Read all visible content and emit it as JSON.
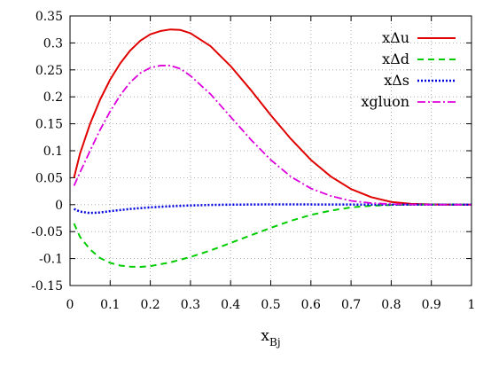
{
  "chart_data": {
    "type": "line",
    "xlabel": "x",
    "xlabel_sub": "Bj",
    "ylabel": "",
    "xlim": [
      0,
      1
    ],
    "ylim": [
      -0.15,
      0.35
    ],
    "xticks": [
      0,
      0.1,
      0.2,
      0.3,
      0.4,
      0.5,
      0.6,
      0.7,
      0.8,
      0.9,
      1
    ],
    "xtick_labels": [
      "0",
      "0.1",
      "0.2",
      "0.3",
      "0.4",
      "0.5",
      "0.6",
      "0.7",
      "0.8",
      "0.9",
      "1"
    ],
    "yticks": [
      -0.15,
      -0.1,
      -0.05,
      0,
      0.05,
      0.1,
      0.15,
      0.2,
      0.25,
      0.3,
      0.35
    ],
    "ytick_labels": [
      "-0.15",
      "-0.1",
      "-0.05",
      "0",
      "0.05",
      "0.1",
      "0.15",
      "0.2",
      "0.25",
      "0.3",
      "0.35"
    ],
    "grid": true,
    "legend_position": "top-right",
    "series": [
      {
        "name": "xΔu",
        "color": "#e00000",
        "dash": "solid",
        "x": [
          0.01,
          0.025,
          0.05,
          0.075,
          0.1,
          0.125,
          0.15,
          0.175,
          0.2,
          0.225,
          0.25,
          0.275,
          0.3,
          0.35,
          0.4,
          0.45,
          0.5,
          0.55,
          0.6,
          0.65,
          0.7,
          0.75,
          0.8,
          0.85,
          0.9,
          0.95,
          1.0
        ],
        "y": [
          0.05,
          0.095,
          0.15,
          0.195,
          0.232,
          0.262,
          0.286,
          0.304,
          0.316,
          0.322,
          0.325,
          0.324,
          0.318,
          0.294,
          0.257,
          0.213,
          0.166,
          0.122,
          0.083,
          0.052,
          0.029,
          0.014,
          0.005,
          0.0015,
          0.0004,
          0.0,
          0.0
        ]
      },
      {
        "name": "xΔd",
        "color": "#00cc00",
        "dash": "dashed",
        "x": [
          0.01,
          0.025,
          0.05,
          0.075,
          0.1,
          0.125,
          0.15,
          0.175,
          0.2,
          0.25,
          0.3,
          0.35,
          0.4,
          0.45,
          0.5,
          0.55,
          0.6,
          0.65,
          0.7,
          0.75,
          0.8,
          0.85,
          0.9,
          0.95,
          1.0
        ],
        "y": [
          -0.035,
          -0.06,
          -0.083,
          -0.099,
          -0.108,
          -0.113,
          -0.115,
          -0.1155,
          -0.114,
          -0.107,
          -0.097,
          -0.085,
          -0.071,
          -0.057,
          -0.043,
          -0.03,
          -0.019,
          -0.011,
          -0.005,
          -0.002,
          -0.0005,
          0.0,
          0.0,
          0.0,
          0.0
        ]
      },
      {
        "name": "xΔs",
        "color": "#0000dd",
        "dash": "dotted",
        "x": [
          0.01,
          0.025,
          0.05,
          0.075,
          0.1,
          0.15,
          0.2,
          0.25,
          0.3,
          0.35,
          0.4,
          0.5,
          0.6,
          0.7,
          0.8,
          0.9,
          1.0
        ],
        "y": [
          -0.008,
          -0.013,
          -0.0155,
          -0.0145,
          -0.012,
          -0.008,
          -0.005,
          -0.003,
          -0.0015,
          -0.0005,
          0.0,
          0.0005,
          0.0004,
          0.0002,
          0.0,
          0.0,
          0.0
        ]
      },
      {
        "name": "xgluon",
        "color": "#dd00dd",
        "dash": "dashdot",
        "x": [
          0.01,
          0.025,
          0.05,
          0.075,
          0.1,
          0.125,
          0.15,
          0.175,
          0.2,
          0.225,
          0.25,
          0.275,
          0.3,
          0.35,
          0.4,
          0.45,
          0.5,
          0.55,
          0.6,
          0.65,
          0.7,
          0.75,
          0.8,
          0.85,
          0.9,
          0.95,
          1.0
        ],
        "y": [
          0.035,
          0.06,
          0.1,
          0.139,
          0.173,
          0.203,
          0.227,
          0.244,
          0.254,
          0.258,
          0.258,
          0.252,
          0.239,
          0.205,
          0.163,
          0.121,
          0.083,
          0.052,
          0.03,
          0.016,
          0.007,
          0.003,
          0.001,
          0.0003,
          0.0,
          0.0,
          0.0
        ]
      }
    ]
  }
}
